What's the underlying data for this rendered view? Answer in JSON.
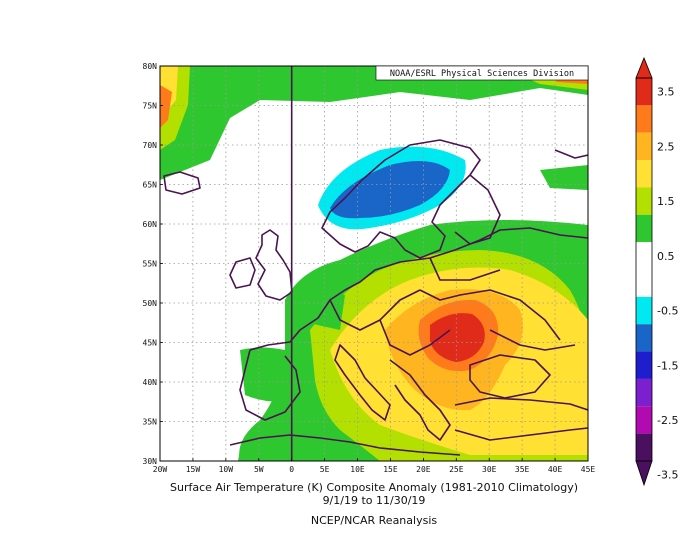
{
  "attribution": "NOAA/ESRL Physical Sciences Division",
  "caption": {
    "line1": "Surface Air Temperature (K) Composite Anomaly (1981-2010 Climatology)",
    "line2": "9/1/19  to 11/30/19",
    "line3": "NCEP/NCAR Reanalysis"
  },
  "map": {
    "lon_range": [
      -20,
      45
    ],
    "lat_range": [
      30,
      80
    ],
    "x_ticks": [
      "20W",
      "15W",
      "10W",
      "5W",
      "0",
      "5E",
      "10E",
      "15E",
      "20E",
      "25E",
      "30E",
      "35E",
      "40E",
      "45E"
    ],
    "y_ticks": [
      "30N",
      "35N",
      "40N",
      "45N",
      "50N",
      "55N",
      "60N",
      "65N",
      "70N",
      "75N",
      "80N"
    ],
    "grid": true,
    "meridian_line_lon": 0
  },
  "colorbar": {
    "levels": [
      "-3.5",
      "-2.5",
      "-1.5",
      "-0.5",
      "0.5",
      "1.5",
      "2.5",
      "3.5"
    ],
    "colors": [
      "#4a0f5e",
      "#b00ab0",
      "#7c1fcf",
      "#1e1ecf",
      "#1a66c8",
      "#00e8f0",
      "#ffffff",
      "#ffffff",
      "#2fc72f",
      "#b3e000",
      "#ffe033",
      "#ffb520",
      "#ff7a1a",
      "#e02a1a"
    ]
  },
  "anomaly_regions": {
    "cold_max": "Scandinavia (below -1.5 K)",
    "warm_max": "Romania / Carpathians (above 3.5 K)"
  }
}
